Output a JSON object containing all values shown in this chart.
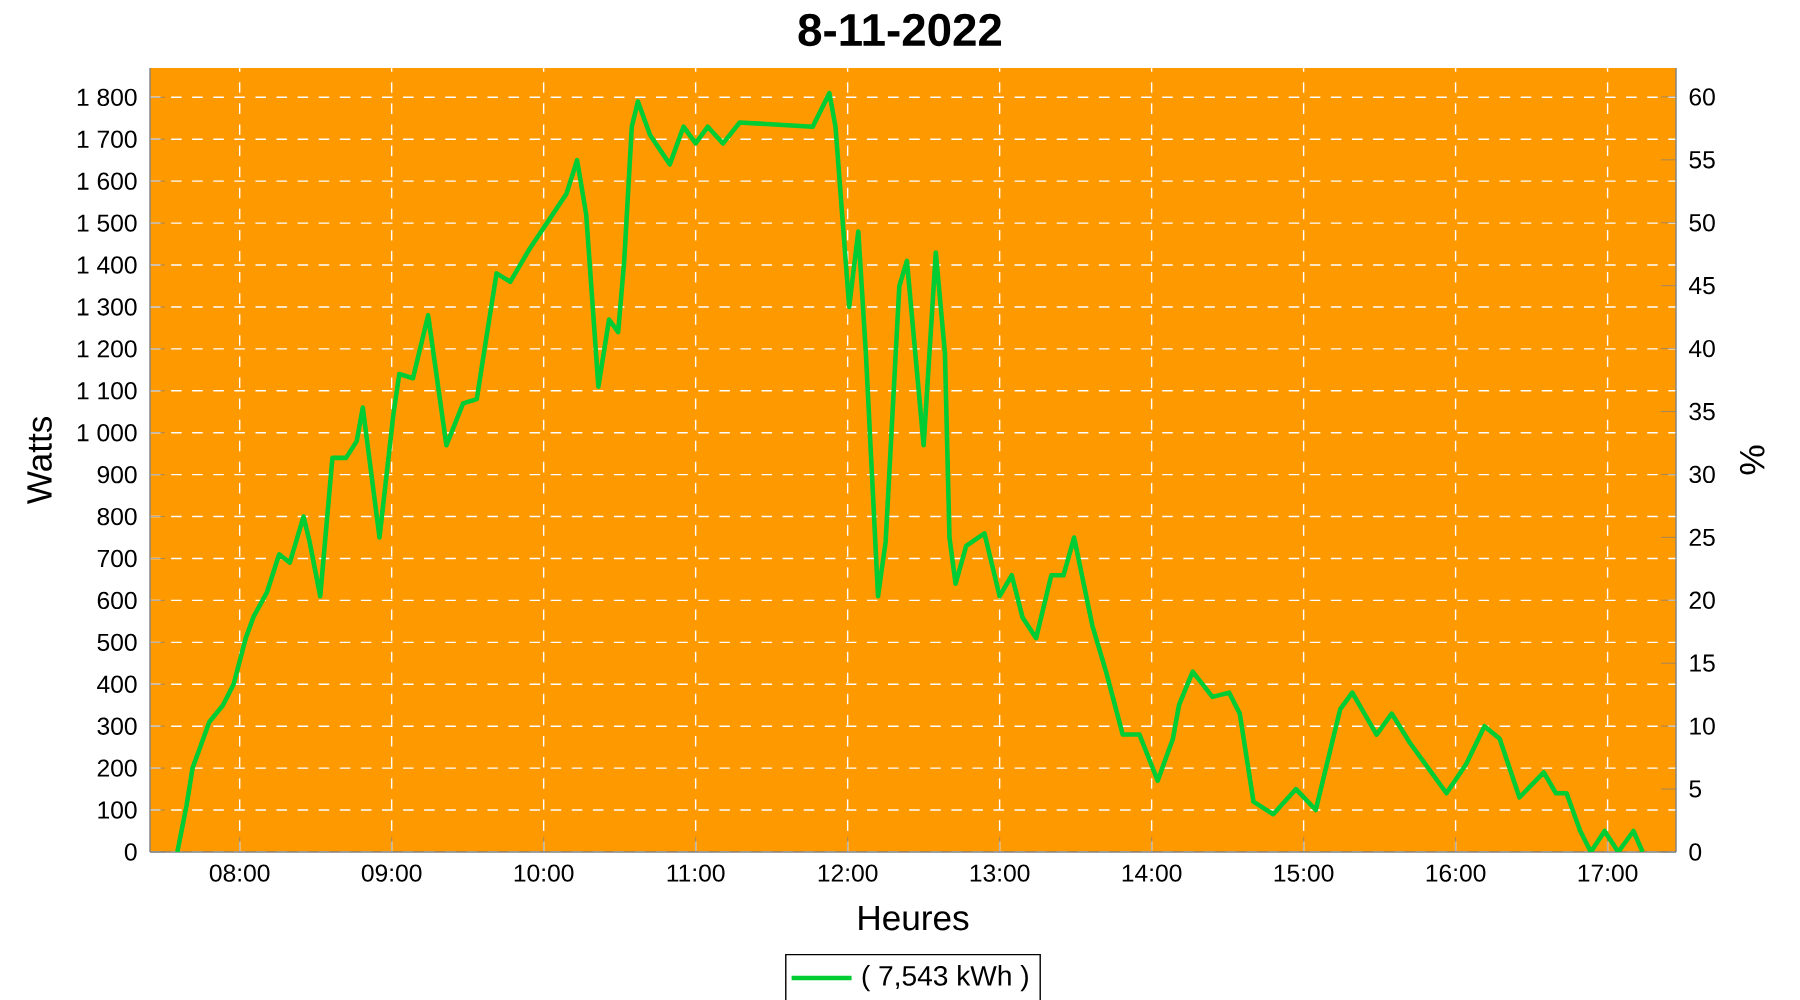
{
  "chart_data": {
    "type": "line",
    "title": "8-11-2022",
    "xlabel": "Heures",
    "ylabel": "Watts",
    "y2label": "%",
    "xlim": [
      7.41,
      17.45
    ],
    "xticks": [
      {
        "value": 8,
        "label": "08:00"
      },
      {
        "value": 9,
        "label": "09:00"
      },
      {
        "value": 10,
        "label": "10:00"
      },
      {
        "value": 11,
        "label": "11:00"
      },
      {
        "value": 12,
        "label": "12:00"
      },
      {
        "value": 13,
        "label": "13:00"
      },
      {
        "value": 14,
        "label": "14:00"
      },
      {
        "value": 15,
        "label": "15:00"
      },
      {
        "value": 16,
        "label": "16:00"
      },
      {
        "value": 17,
        "label": "17:00"
      }
    ],
    "ylim": [
      0,
      1870
    ],
    "yticks": [
      0,
      100,
      200,
      300,
      400,
      500,
      600,
      700,
      800,
      900,
      {
        "value": 1000,
        "label": "1 000"
      },
      {
        "value": 1100,
        "label": "1 100"
      },
      {
        "value": 1200,
        "label": "1 200"
      },
      {
        "value": 1300,
        "label": "1 300"
      },
      {
        "value": 1400,
        "label": "1 400"
      },
      {
        "value": 1500,
        "label": "1 500"
      },
      {
        "value": 1600,
        "label": "1 600"
      },
      {
        "value": 1700,
        "label": "1 700"
      },
      {
        "value": 1800,
        "label": "1 800"
      }
    ],
    "y2lim": [
      0,
      62.3
    ],
    "y2ticks": [
      0,
      5,
      10,
      15,
      20,
      25,
      30,
      35,
      40,
      45,
      50,
      55,
      60
    ],
    "grid": true,
    "legend": "bottom",
    "series": [
      {
        "name": "( 7,543 kWh )",
        "color": "#00cc33",
        "x": [
          7.59,
          7.65,
          7.69,
          7.74,
          7.8,
          7.89,
          7.96,
          8.04,
          8.09,
          8.18,
          8.26,
          8.33,
          8.42,
          8.46,
          8.53,
          8.61,
          8.7,
          8.77,
          8.81,
          8.92,
          9.01,
          9.05,
          9.14,
          9.24,
          9.36,
          9.47,
          9.56,
          9.62,
          9.69,
          9.78,
          9.91,
          10.04,
          10.15,
          10.22,
          10.28,
          10.36,
          10.43,
          10.49,
          10.53,
          10.58,
          10.62,
          10.7,
          10.83,
          10.92,
          11.0,
          11.08,
          11.18,
          11.29,
          11.77,
          11.88,
          11.92,
          12.01,
          12.07,
          12.12,
          12.2,
          12.25,
          12.34,
          12.39,
          12.45,
          12.5,
          12.58,
          12.64,
          12.67,
          12.71,
          12.78,
          12.9,
          13.0,
          13.08,
          13.15,
          13.24,
          13.34,
          13.42,
          13.49,
          13.61,
          13.7,
          13.81,
          13.92,
          14.04,
          14.14,
          14.18,
          14.27,
          14.4,
          14.51,
          14.58,
          14.67,
          14.8,
          14.95,
          15.08,
          15.24,
          15.32,
          15.48,
          15.58,
          15.7,
          15.94,
          16.07,
          16.19,
          16.29,
          16.42,
          16.58,
          16.66,
          16.73,
          16.82,
          16.89,
          16.98,
          17.07,
          17.17,
          17.23
        ],
        "values": [
          0,
          110,
          200,
          250,
          310,
          350,
          400,
          510,
          560,
          620,
          710,
          690,
          800,
          740,
          610,
          940,
          940,
          980,
          1060,
          750,
          1040,
          1140,
          1130,
          1280,
          970,
          1070,
          1080,
          1220,
          1380,
          1360,
          1440,
          1510,
          1570,
          1650,
          1520,
          1110,
          1270,
          1240,
          1410,
          1730,
          1790,
          1710,
          1640,
          1730,
          1690,
          1730,
          1690,
          1740,
          1730,
          1810,
          1730,
          1300,
          1480,
          1190,
          610,
          740,
          1350,
          1410,
          1170,
          970,
          1430,
          1190,
          750,
          640,
          730,
          760,
          610,
          660,
          560,
          510,
          660,
          660,
          750,
          540,
          430,
          280,
          280,
          170,
          270,
          350,
          430,
          370,
          380,
          330,
          120,
          90,
          150,
          100,
          340,
          380,
          280,
          330,
          260,
          140,
          210,
          300,
          270,
          130,
          190,
          140,
          140,
          50,
          0,
          50,
          0,
          50,
          0
        ]
      }
    ]
  }
}
